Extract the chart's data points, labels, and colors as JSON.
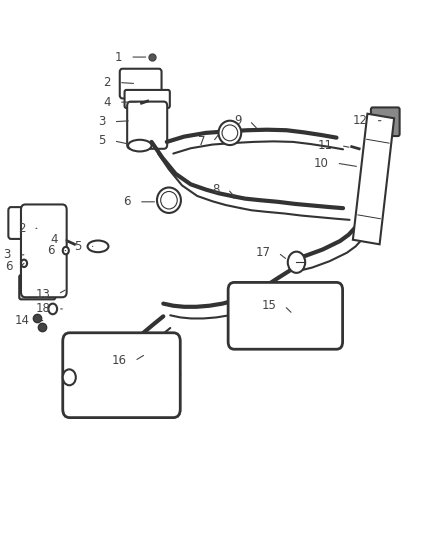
{
  "bg_color": "#ffffff",
  "fig_width": 4.38,
  "fig_height": 5.33,
  "dpi": 100,
  "line_color": "#333333",
  "line_width": 1.5,
  "label_color": "#444444",
  "label_fontsize": 8.5
}
